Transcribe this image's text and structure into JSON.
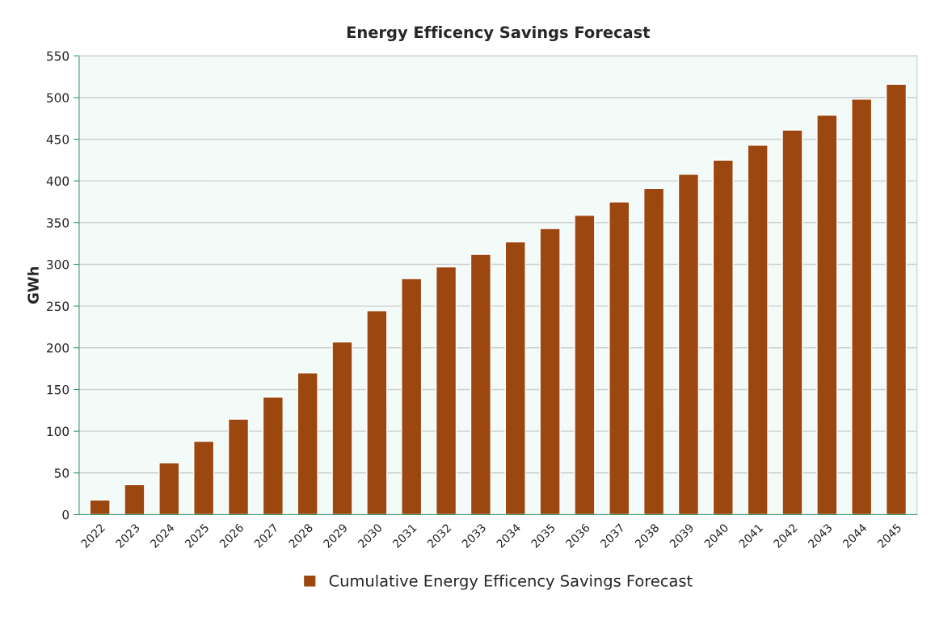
{
  "chart_data": {
    "type": "bar",
    "title": "Energy Efficency Savings Forecast",
    "ylabel": "GWh",
    "categories": [
      "2022",
      "2023",
      "2024",
      "2025",
      "2026",
      "2027",
      "2028",
      "2029",
      "2030",
      "2031",
      "2032",
      "2033",
      "2034",
      "2035",
      "2036",
      "2037",
      "2038",
      "2039",
      "2040",
      "2041",
      "2042",
      "2043",
      "2044",
      "2045"
    ],
    "series": [
      {
        "name": "Cumulative Energy Efficency Savings Forecast",
        "color": "#9c4710",
        "values": [
          17.5,
          36,
          62,
          88,
          114.5,
          141,
          170,
          207,
          244.5,
          283,
          297,
          312,
          327,
          343,
          359,
          375,
          391,
          408,
          425,
          443,
          461,
          479,
          498,
          516
        ]
      }
    ],
    "ylim": [
      0,
      550
    ],
    "yticks": [
      0,
      50,
      100,
      150,
      200,
      250,
      300,
      350,
      400,
      450,
      500,
      550
    ],
    "grid": "y",
    "legend": "bottom"
  }
}
